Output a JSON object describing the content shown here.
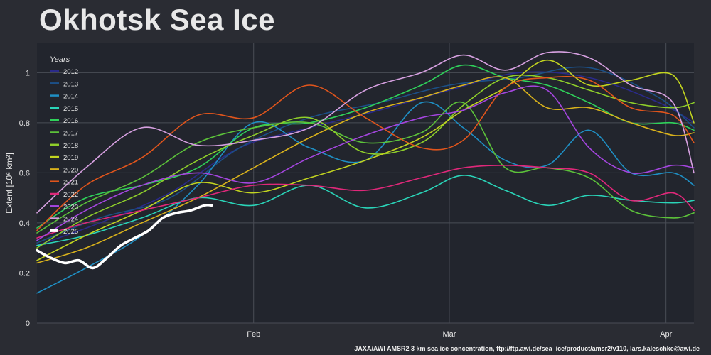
{
  "title": "Okhotsk Sea Ice",
  "credit": "JAXA/AWI AMSR2 3 km sea ice concentration, ftp://ftp.awi.de/sea_ice/product/amsr2/v110, lars.kaleschke@awi.de",
  "chart_data": {
    "type": "line",
    "title": "Okhotsk Sea Ice",
    "xlabel": "",
    "ylabel": "Extent [10⁶ km²]",
    "ylim": [
      0,
      1.12
    ],
    "y_ticks": [
      0,
      0.2,
      0.4,
      0.6,
      0.8,
      1
    ],
    "y_tick_labels": [
      "0",
      "0.2",
      "0.4",
      "0.6",
      "0.8",
      "1"
    ],
    "x_unit": "day of year",
    "xlim": [
      1,
      95
    ],
    "x_ticks": [
      32,
      60,
      91
    ],
    "x_tick_labels": [
      "Feb",
      "Mar",
      "Apr"
    ],
    "grid": true,
    "legend_title": "Years",
    "legend_position": "top-left",
    "series": [
      {
        "name": "2012",
        "color": "#2a2a8a",
        "x": [
          1,
          10,
          20,
          30,
          40,
          50,
          60,
          70,
          80,
          90,
          95
        ],
        "values": [
          0.31,
          0.4,
          0.52,
          0.7,
          0.78,
          0.85,
          0.93,
          1.0,
          0.98,
          0.88,
          0.8
        ]
      },
      {
        "name": "2013",
        "color": "#1c4f86",
        "x": [
          1,
          10,
          20,
          30,
          40,
          50,
          60,
          70,
          80,
          90,
          95
        ],
        "values": [
          0.32,
          0.42,
          0.5,
          0.7,
          0.82,
          0.88,
          0.95,
          0.98,
          1.02,
          0.9,
          0.78
        ]
      },
      {
        "name": "2014",
        "color": "#1f8fc4",
        "x": [
          1,
          8,
          16,
          24,
          32,
          40,
          48,
          56,
          62,
          68,
          74,
          80,
          86,
          92,
          95
        ],
        "values": [
          0.12,
          0.22,
          0.35,
          0.55,
          0.8,
          0.7,
          0.65,
          0.88,
          0.78,
          0.65,
          0.63,
          0.77,
          0.6,
          0.6,
          0.55
        ]
      },
      {
        "name": "2015",
        "color": "#2ad4b8",
        "x": [
          1,
          8,
          16,
          24,
          32,
          40,
          48,
          56,
          62,
          68,
          74,
          80,
          86,
          92,
          95
        ],
        "values": [
          0.31,
          0.35,
          0.42,
          0.5,
          0.47,
          0.55,
          0.46,
          0.52,
          0.59,
          0.53,
          0.47,
          0.51,
          0.49,
          0.48,
          0.49
        ]
      },
      {
        "name": "2016",
        "color": "#2fd15a",
        "x": [
          1,
          8,
          16,
          24,
          32,
          40,
          48,
          56,
          62,
          68,
          74,
          80,
          86,
          92,
          95
        ],
        "values": [
          0.38,
          0.5,
          0.55,
          0.62,
          0.78,
          0.8,
          0.86,
          0.95,
          1.03,
          0.98,
          0.95,
          0.88,
          0.8,
          0.8,
          0.77
        ]
      },
      {
        "name": "2017",
        "color": "#5cc23a",
        "x": [
          1,
          8,
          16,
          24,
          32,
          40,
          48,
          56,
          62,
          68,
          74,
          80,
          86,
          92,
          95
        ],
        "values": [
          0.36,
          0.48,
          0.58,
          0.72,
          0.78,
          0.8,
          0.72,
          0.76,
          0.88,
          0.62,
          0.62,
          0.58,
          0.45,
          0.42,
          0.44
        ]
      },
      {
        "name": "2018",
        "color": "#8fcf2a",
        "x": [
          1,
          8,
          16,
          24,
          32,
          40,
          48,
          56,
          62,
          68,
          74,
          80,
          86,
          92,
          95
        ],
        "values": [
          0.3,
          0.42,
          0.52,
          0.65,
          0.75,
          0.82,
          0.68,
          0.72,
          0.87,
          0.98,
          0.98,
          0.93,
          0.88,
          0.86,
          0.88
        ]
      },
      {
        "name": "2019",
        "color": "#c2d420",
        "x": [
          1,
          8,
          16,
          24,
          32,
          40,
          48,
          56,
          62,
          68,
          74,
          80,
          86,
          92,
          95
        ],
        "values": [
          0.25,
          0.35,
          0.45,
          0.56,
          0.52,
          0.58,
          0.65,
          0.74,
          0.85,
          0.94,
          1.05,
          0.95,
          0.97,
          0.99,
          0.8
        ]
      },
      {
        "name": "2020",
        "color": "#d9b21c",
        "x": [
          1,
          8,
          16,
          24,
          32,
          40,
          48,
          56,
          62,
          68,
          74,
          80,
          86,
          92,
          95
        ],
        "values": [
          0.24,
          0.3,
          0.4,
          0.5,
          0.62,
          0.74,
          0.84,
          0.9,
          0.95,
          0.98,
          0.86,
          0.86,
          0.8,
          0.75,
          0.76
        ]
      },
      {
        "name": "2021",
        "color": "#e0551c",
        "x": [
          1,
          8,
          16,
          24,
          32,
          40,
          48,
          56,
          62,
          68,
          74,
          80,
          86,
          92,
          95
        ],
        "values": [
          0.37,
          0.55,
          0.66,
          0.83,
          0.82,
          0.95,
          0.82,
          0.7,
          0.73,
          0.94,
          0.98,
          0.97,
          0.86,
          0.83,
          0.72
        ]
      },
      {
        "name": "2022",
        "color": "#e0287a",
        "x": [
          1,
          8,
          16,
          24,
          32,
          40,
          48,
          56,
          62,
          68,
          74,
          80,
          86,
          92,
          95
        ],
        "values": [
          0.34,
          0.4,
          0.45,
          0.5,
          0.55,
          0.55,
          0.53,
          0.58,
          0.62,
          0.63,
          0.62,
          0.6,
          0.49,
          0.52,
          0.45
        ]
      },
      {
        "name": "2023",
        "color": "#a546e0",
        "x": [
          1,
          8,
          16,
          24,
          32,
          40,
          48,
          56,
          62,
          68,
          74,
          80,
          86,
          92,
          95
        ],
        "values": [
          0.33,
          0.45,
          0.55,
          0.6,
          0.56,
          0.66,
          0.75,
          0.82,
          0.85,
          0.92,
          0.93,
          0.7,
          0.6,
          0.63,
          0.62
        ]
      },
      {
        "name": "2024",
        "color": "#d6a0e0",
        "x": [
          1,
          8,
          16,
          24,
          32,
          40,
          48,
          56,
          62,
          68,
          74,
          80,
          86,
          92,
          95
        ],
        "values": [
          0.44,
          0.62,
          0.78,
          0.71,
          0.73,
          0.78,
          0.93,
          1.0,
          1.07,
          1.01,
          1.08,
          1.06,
          0.95,
          0.88,
          0.6
        ]
      },
      {
        "name": "2025",
        "color": "#ffffff",
        "x": [
          1,
          3,
          5,
          7,
          9,
          11,
          13,
          15,
          17,
          19,
          21,
          23,
          25,
          26
        ],
        "values": [
          0.29,
          0.26,
          0.24,
          0.25,
          0.22,
          0.26,
          0.31,
          0.34,
          0.37,
          0.42,
          0.44,
          0.45,
          0.47,
          0.47
        ]
      }
    ]
  }
}
